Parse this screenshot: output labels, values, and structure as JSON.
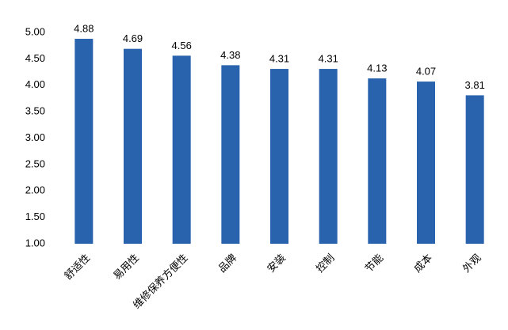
{
  "chart_data": {
    "type": "bar",
    "categories": [
      "舒适性",
      "易用性",
      "维修保养方便性",
      "品牌",
      "安装",
      "控制",
      "节能",
      "成本",
      "外观"
    ],
    "values": [
      4.88,
      4.69,
      4.56,
      4.38,
      4.31,
      4.31,
      4.13,
      4.07,
      3.81
    ],
    "color": "#2a63ad",
    "ylim": [
      1,
      5
    ],
    "yticks": [
      {
        "value": 1,
        "label": "1.00"
      },
      {
        "value": 1.5,
        "label": "1.50"
      },
      {
        "value": 2,
        "label": "2.00"
      },
      {
        "value": 2.5,
        "label": "2.50"
      },
      {
        "value": 3,
        "label": "3.00"
      },
      {
        "value": 3.5,
        "label": "3.50"
      },
      {
        "value": 4,
        "label": "4.00"
      },
      {
        "value": 4.5,
        "label": "4.50"
      },
      {
        "value": 5,
        "label": "5.00"
      }
    ],
    "grid": false
  }
}
